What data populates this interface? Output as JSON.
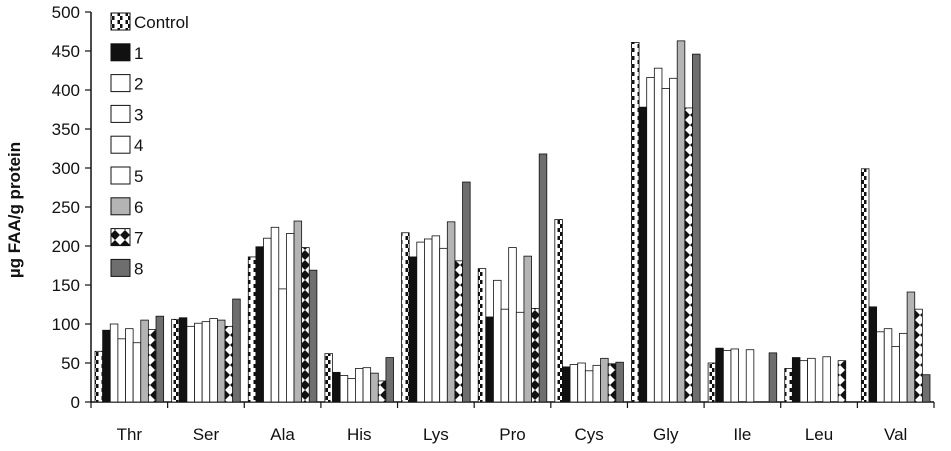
{
  "chart_data": {
    "type": "bar",
    "title": "",
    "xlabel": "",
    "ylabel": "µg FAA/g protein",
    "ylim": [
      0,
      500
    ],
    "yticks": [
      0,
      50,
      100,
      150,
      200,
      250,
      300,
      350,
      400,
      450,
      500
    ],
    "grid": false,
    "legend_position": "top-left",
    "categories": [
      "Thr",
      "Ser",
      "Ala",
      "His",
      "Lys",
      "Pro",
      "Cys",
      "Gly",
      "Ile",
      "Leu",
      "Val"
    ],
    "series": [
      {
        "name": "Control",
        "style": "dashed-white",
        "values": [
          65,
          106,
          186,
          62,
          217,
          171,
          234,
          461,
          50,
          43,
          299
        ]
      },
      {
        "name": "1",
        "style": "black",
        "values": [
          92,
          108,
          199,
          38,
          186,
          109,
          45,
          378,
          69,
          57,
          122
        ]
      },
      {
        "name": "2",
        "style": "white",
        "values": [
          100,
          97,
          210,
          34,
          205,
          156,
          48,
          416,
          66,
          53,
          90
        ]
      },
      {
        "name": "3",
        "style": "white",
        "values": [
          81,
          101,
          224,
          30,
          209,
          119,
          50,
          428,
          68,
          56,
          94
        ]
      },
      {
        "name": "4",
        "style": "white",
        "values": [
          94,
          103,
          145,
          43,
          213,
          198,
          40,
          402,
          0,
          0,
          71
        ]
      },
      {
        "name": "5",
        "style": "white",
        "values": [
          76,
          107,
          216,
          44,
          197,
          115,
          47,
          415,
          67,
          58,
          88
        ]
      },
      {
        "name": "6",
        "style": "gray",
        "values": [
          105,
          105,
          232,
          37,
          231,
          187,
          56,
          463,
          0,
          0,
          141
        ]
      },
      {
        "name": "7",
        "style": "checker",
        "values": [
          93,
          97,
          198,
          27,
          181,
          120,
          49,
          377,
          0,
          53,
          119
        ]
      },
      {
        "name": "8",
        "style": "darkgray",
        "values": [
          110,
          132,
          169,
          57,
          282,
          318,
          51,
          446,
          63,
          0,
          35
        ]
      }
    ]
  },
  "colors": {
    "black": "#111111",
    "gray": "#b4b4b4",
    "darkgray": "#6e6e6e",
    "white": "#ffffff"
  }
}
